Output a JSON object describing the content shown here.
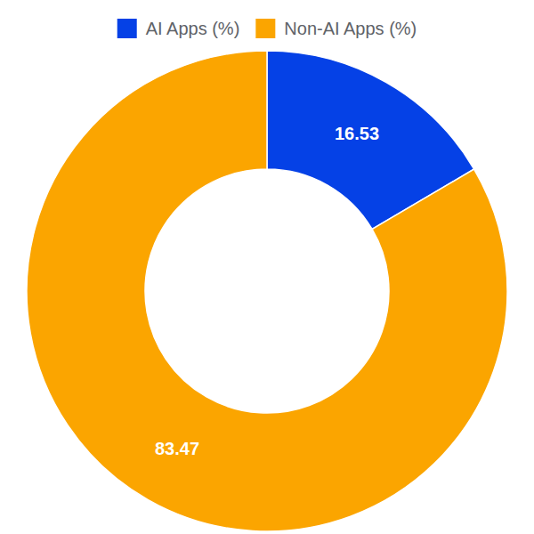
{
  "chart_data": {
    "type": "donut",
    "categories": [
      "AI Apps (%)",
      "Non-AI Apps (%)"
    ],
    "values": [
      16.53,
      83.47
    ],
    "colors": [
      "#0541e6",
      "#fba500"
    ],
    "data_labels": true,
    "legend": "top"
  }
}
